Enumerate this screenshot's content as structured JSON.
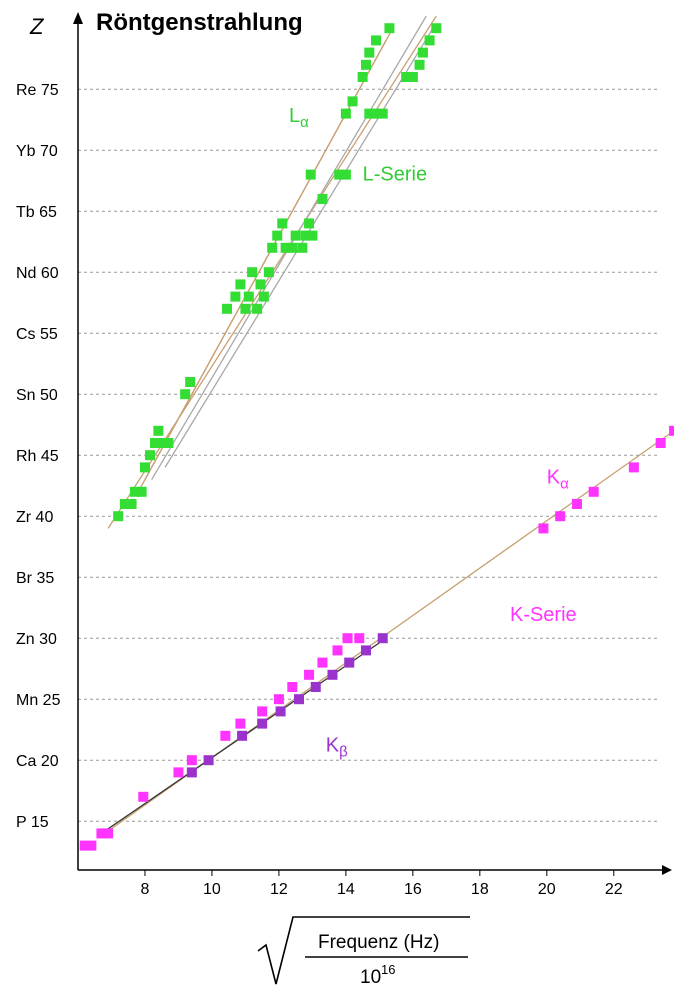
{
  "chart_data": {
    "type": "scatter",
    "title": "Röntgenstrahlung",
    "ylabel": "Z",
    "xlabel": {
      "numerator": "Frequenz (Hz)",
      "denominator_base": "10",
      "denominator_exp": "16"
    },
    "xlim": [
      6,
      23.5
    ],
    "ylim": [
      11,
      81
    ],
    "x_ticks": [
      8,
      10,
      12,
      14,
      16,
      18,
      20,
      22
    ],
    "y_ticks": [
      {
        "z": 15,
        "label": "P 15"
      },
      {
        "z": 20,
        "label": "Ca 20"
      },
      {
        "z": 25,
        "label": "Mn 25"
      },
      {
        "z": 30,
        "label": "Zn 30"
      },
      {
        "z": 35,
        "label": "Br 35"
      },
      {
        "z": 40,
        "label": "Zr 40"
      },
      {
        "z": 45,
        "label": "Rh 45"
      },
      {
        "z": 50,
        "label": "Sn 50"
      },
      {
        "z": 55,
        "label": "Cs 55"
      },
      {
        "z": 60,
        "label": "Nd 60"
      },
      {
        "z": 65,
        "label": "Tb 65"
      },
      {
        "z": 70,
        "label": "Yb 70"
      },
      {
        "z": 75,
        "label": "Re 75"
      }
    ],
    "annotations": [
      {
        "text": "L",
        "sub": "α",
        "x": 12.3,
        "z": 72.3,
        "color": "#33cc33"
      },
      {
        "text": "L-Serie",
        "x": 14.5,
        "z": 67.5,
        "color": "#33cc33"
      },
      {
        "text": "K",
        "sub": "α",
        "x": 20.0,
        "z": 42.7,
        "color": "#ff33ff"
      },
      {
        "text": "K-Serie",
        "x": 18.9,
        "z": 31.4,
        "color": "#ff33ff"
      },
      {
        "text": "K",
        "sub": "β",
        "x": 13.4,
        "z": 20.7,
        "color": "#9933cc"
      }
    ],
    "colors": {
      "L_series": "#33dd33",
      "K_alpha": "#ff33ff",
      "K_beta": "#9933cc",
      "fit_line": "#c8a070",
      "fit_line_gray": "#a8a8a8",
      "grid": "#999999"
    },
    "series": [
      {
        "name": "L-Serie",
        "color": "#33dd33",
        "points": [
          [
            7.2,
            40
          ],
          [
            7.4,
            41
          ],
          [
            7.6,
            41
          ],
          [
            7.7,
            42
          ],
          [
            7.9,
            42
          ],
          [
            8.0,
            44
          ],
          [
            8.15,
            45
          ],
          [
            8.3,
            46
          ],
          [
            8.4,
            47
          ],
          [
            8.55,
            46
          ],
          [
            8.7,
            46
          ],
          [
            9.2,
            50
          ],
          [
            9.35,
            51
          ],
          [
            10.45,
            57
          ],
          [
            10.7,
            58
          ],
          [
            10.85,
            59
          ],
          [
            11.0,
            57
          ],
          [
            11.1,
            58
          ],
          [
            11.2,
            60
          ],
          [
            11.35,
            57
          ],
          [
            11.45,
            59
          ],
          [
            11.55,
            58
          ],
          [
            11.7,
            60
          ],
          [
            11.8,
            62
          ],
          [
            11.95,
            63
          ],
          [
            12.1,
            64
          ],
          [
            12.2,
            62
          ],
          [
            12.4,
            62
          ],
          [
            12.5,
            63
          ],
          [
            12.7,
            62
          ],
          [
            12.8,
            63
          ],
          [
            12.9,
            64
          ],
          [
            13.0,
            63
          ],
          [
            12.95,
            68
          ],
          [
            13.3,
            66
          ],
          [
            13.8,
            68
          ],
          [
            14.0,
            68
          ],
          [
            14.0,
            73
          ],
          [
            14.2,
            74
          ],
          [
            14.7,
            73
          ],
          [
            14.9,
            73
          ],
          [
            15.1,
            73
          ],
          [
            14.5,
            76
          ],
          [
            14.6,
            77
          ],
          [
            14.7,
            78
          ],
          [
            14.9,
            79
          ],
          [
            15.3,
            80
          ],
          [
            15.8,
            76
          ],
          [
            16.0,
            76
          ],
          [
            16.2,
            77
          ],
          [
            16.3,
            78
          ],
          [
            16.5,
            79
          ],
          [
            16.7,
            80
          ]
        ],
        "fit_lines": [
          [
            [
              6.9,
              39
            ],
            [
              16.7,
              81
            ]
          ],
          [
            [
              8.2,
              43
            ],
            [
              16.4,
              81
            ]
          ],
          [
            [
              8.0,
              43
            ],
            [
              15.4,
              80
            ]
          ],
          [
            [
              7.8,
              42
            ],
            [
              15.2,
              79
            ]
          ],
          [
            [
              8.6,
              44
            ],
            [
              16.6,
              80
            ]
          ]
        ]
      },
      {
        "name": "Kα",
        "color": "#ff33ff",
        "points": [
          [
            6.2,
            13
          ],
          [
            6.4,
            13
          ],
          [
            6.7,
            14
          ],
          [
            6.9,
            14
          ],
          [
            7.95,
            17
          ],
          [
            9.0,
            19
          ],
          [
            9.4,
            20
          ],
          [
            10.4,
            22
          ],
          [
            10.85,
            23
          ],
          [
            11.5,
            24
          ],
          [
            12.0,
            25
          ],
          [
            12.4,
            26
          ],
          [
            12.9,
            27
          ],
          [
            13.3,
            28
          ],
          [
            13.75,
            29
          ],
          [
            14.05,
            30
          ],
          [
            14.4,
            30
          ],
          [
            19.9,
            39
          ],
          [
            20.4,
            40
          ],
          [
            20.9,
            41
          ],
          [
            21.4,
            42
          ],
          [
            22.6,
            44
          ],
          [
            23.4,
            46
          ],
          [
            23.8,
            47
          ]
        ],
        "fit_lines": [
          [
            [
              6.8,
              14
            ],
            [
              23.9,
              47.2
            ]
          ]
        ]
      },
      {
        "name": "Kβ",
        "color": "#9933cc",
        "points": [
          [
            9.4,
            19
          ],
          [
            9.9,
            20
          ],
          [
            10.9,
            22
          ],
          [
            11.5,
            23
          ],
          [
            12.05,
            24
          ],
          [
            12.6,
            25
          ],
          [
            13.1,
            26
          ],
          [
            13.6,
            27
          ],
          [
            14.1,
            28
          ],
          [
            14.6,
            29
          ],
          [
            15.1,
            30
          ]
        ],
        "fit_lines": [
          [
            [
              6.7,
              14
            ],
            [
              15.2,
              30
            ]
          ]
        ]
      }
    ]
  }
}
